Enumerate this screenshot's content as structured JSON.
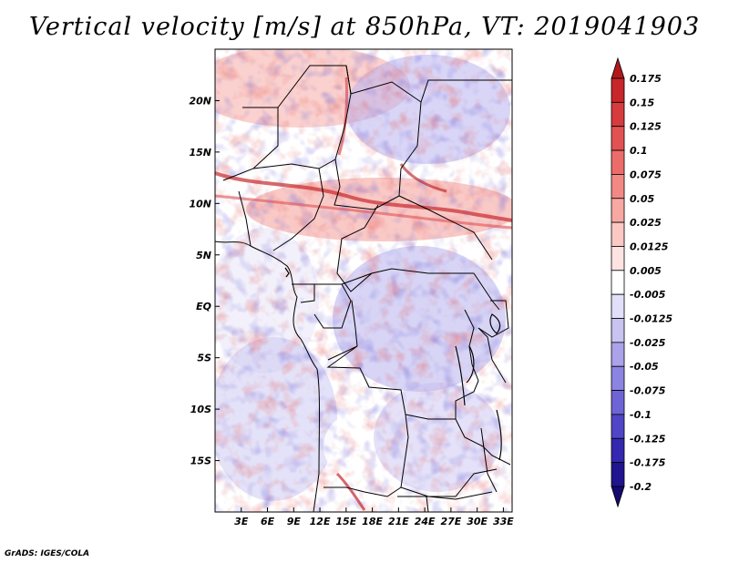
{
  "title": "Vertical velocity [m/s] at 850hPa, VT: 2019041903",
  "footer": "GrADS: IGES/COLA",
  "map": {
    "lon_range": [
      0,
      34
    ],
    "lat_range": [
      -20,
      25
    ],
    "lon_ticks": [
      "3E",
      "6E",
      "9E",
      "12E",
      "15E",
      "18E",
      "21E",
      "24E",
      "27E",
      "30E",
      "33E"
    ],
    "lat_ticks": [
      "20N",
      "15N",
      "10N",
      "5N",
      "EQ",
      "5S",
      "10S",
      "15S"
    ]
  },
  "colorbar": {
    "labels": [
      "0.175",
      "0.15",
      "0.125",
      "0.1",
      "0.075",
      "0.05",
      "0.025",
      "0.0125",
      "0.005",
      "-0.005",
      "-0.0125",
      "-0.025",
      "-0.05",
      "-0.075",
      "-0.1",
      "-0.125",
      "-0.175",
      "-0.2"
    ],
    "colors": [
      "#b2181b",
      "#c7262a",
      "#d63b3d",
      "#e35253",
      "#ec6c6a",
      "#f28985",
      "#f7a8a3",
      "#fbc8c4",
      "#fde4e2",
      "#ffffff",
      "#e2e0f8",
      "#c8c3f1",
      "#aaa3ea",
      "#8c84e1",
      "#6e64d6",
      "#5045c6",
      "#3428b0",
      "#20148f",
      "#150a6e"
    ]
  }
}
